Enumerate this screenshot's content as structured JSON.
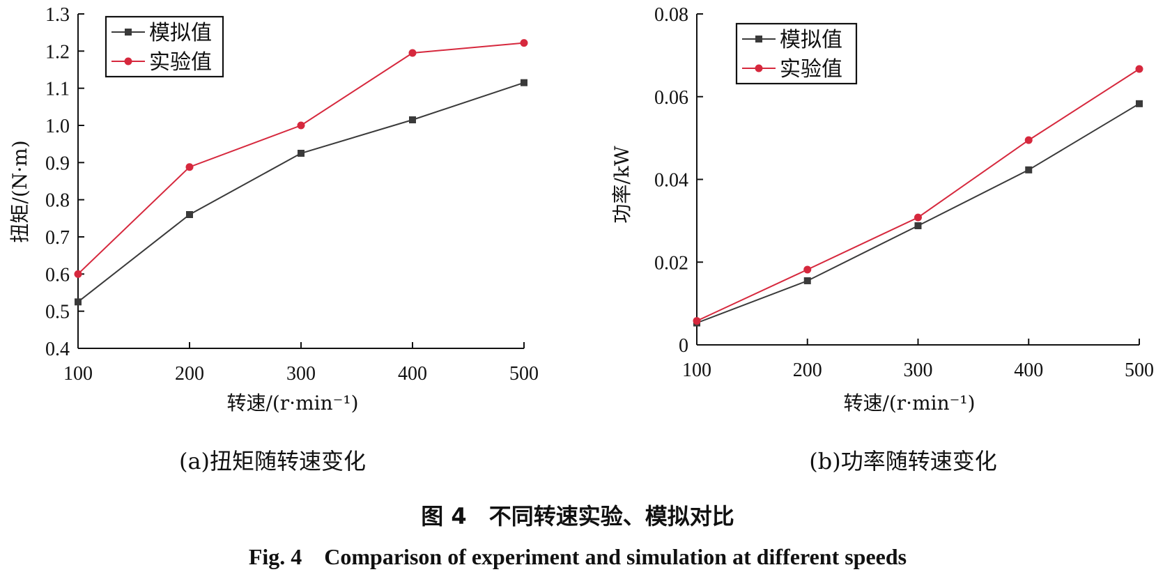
{
  "chart_data": [
    {
      "type": "line",
      "subcaption": "(a)扭矩随转速变化",
      "xlabel": "转速/(r·min⁻¹)",
      "ylabel": "扭矩/(N·m)",
      "x": [
        100,
        200,
        300,
        400,
        500
      ],
      "xlim": [
        100,
        500
      ],
      "ylim": [
        0.4,
        1.3
      ],
      "xticks": [
        "100",
        "200",
        "300",
        "400",
        "500"
      ],
      "yticks": [
        "0.4",
        "0.5",
        "0.6",
        "0.7",
        "0.8",
        "0.9",
        "1.0",
        "1.1",
        "1.2",
        "1.3"
      ],
      "grid": false,
      "legend_position": "top-left",
      "series": [
        {
          "name": "模拟值",
          "marker": "square",
          "color": "#3a3a3a",
          "values": [
            0.525,
            0.76,
            0.925,
            1.015,
            1.115
          ]
        },
        {
          "name": "实验值",
          "marker": "circle",
          "color": "#d6283d",
          "values": [
            0.6,
            0.888,
            1.0,
            1.195,
            1.222
          ]
        }
      ]
    },
    {
      "type": "line",
      "subcaption": "(b)功率随转速变化",
      "xlabel": "转速/(r·min⁻¹)",
      "ylabel": "功率/kW",
      "x": [
        100,
        200,
        300,
        400,
        500
      ],
      "xlim": [
        100,
        500
      ],
      "ylim": [
        0,
        0.08
      ],
      "xticks": [
        "100",
        "200",
        "300",
        "400",
        "500"
      ],
      "yticks": [
        "0",
        "0.02",
        "0.04",
        "0.06",
        "0.08"
      ],
      "grid": false,
      "legend_position": "top-left",
      "series": [
        {
          "name": "模拟值",
          "marker": "square",
          "color": "#3a3a3a",
          "values": [
            0.0053,
            0.0155,
            0.0288,
            0.0423,
            0.0583
          ]
        },
        {
          "name": "实验值",
          "marker": "circle",
          "color": "#d6283d",
          "values": [
            0.0058,
            0.0182,
            0.0308,
            0.0495,
            0.0667
          ]
        }
      ]
    }
  ],
  "caption": {
    "cn": "图 4　不同转速实验、模拟对比",
    "en": "Fig. 4　Comparison of experiment and simulation at different speeds"
  }
}
